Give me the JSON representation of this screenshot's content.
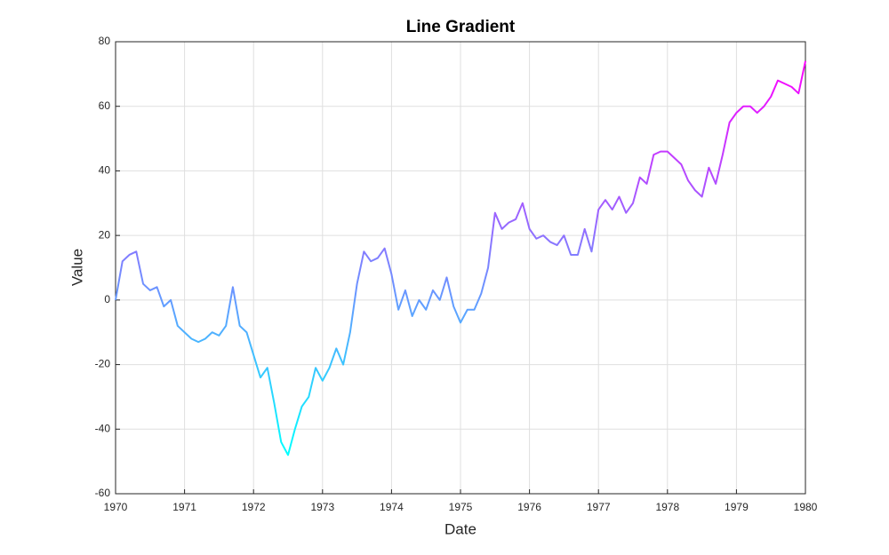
{
  "chart_data": {
    "type": "line",
    "title": "Line Gradient",
    "x_label": "Date",
    "y_label": "Value",
    "x": [
      1970.0,
      1970.1,
      1970.2,
      1970.3,
      1970.4,
      1970.5,
      1970.6,
      1970.7,
      1970.8,
      1970.9,
      1971.0,
      1971.1,
      1971.2,
      1971.3,
      1971.4,
      1971.5,
      1971.6,
      1971.7,
      1971.8,
      1971.9,
      1972.0,
      1972.1,
      1972.2,
      1972.3,
      1972.4,
      1972.5,
      1972.6,
      1972.7,
      1972.8,
      1972.9,
      1973.0,
      1973.1,
      1973.2,
      1973.3,
      1973.4,
      1973.5,
      1973.6,
      1973.7,
      1973.8,
      1973.9,
      1974.0,
      1974.1,
      1974.2,
      1974.3,
      1974.4,
      1974.5,
      1974.6,
      1974.7,
      1974.8,
      1974.9,
      1975.0,
      1975.1,
      1975.2,
      1975.3,
      1975.4,
      1975.5,
      1975.6,
      1975.7,
      1975.8,
      1975.9,
      1976.0,
      1976.1,
      1976.2,
      1976.3,
      1976.4,
      1976.5,
      1976.6,
      1976.7,
      1976.8,
      1976.9,
      1977.0,
      1977.1,
      1977.2,
      1977.3,
      1977.4,
      1977.5,
      1977.6,
      1977.7,
      1977.8,
      1977.9,
      1978.0,
      1978.1,
      1978.2,
      1978.3,
      1978.4,
      1978.5,
      1978.6,
      1978.7,
      1978.8,
      1978.9,
      1979.0,
      1979.1,
      1979.2,
      1979.3,
      1979.4,
      1979.5,
      1979.6,
      1979.7,
      1979.8,
      1979.9,
      1980.0
    ],
    "values": [
      0,
      12,
      14,
      15,
      5,
      3,
      4,
      -2,
      0,
      -8,
      -10,
      -12,
      -13,
      -12,
      -10,
      -11,
      -8,
      4,
      -8,
      -10,
      -17,
      -24,
      -21,
      -32,
      -44,
      -48,
      -40,
      -33,
      -30,
      -21,
      -25,
      -21,
      -15,
      -20,
      -10,
      5,
      15,
      12,
      13,
      16,
      8,
      -3,
      3,
      -5,
      0,
      -3,
      3,
      0,
      7,
      -2,
      -7,
      -3,
      -3,
      2,
      10,
      27,
      22,
      24,
      25,
      30,
      22,
      19,
      20,
      18,
      17,
      20,
      14,
      14,
      22,
      15,
      28,
      31,
      28,
      32,
      27,
      30,
      38,
      36,
      45,
      46,
      46,
      44,
      42,
      37,
      34,
      32,
      41,
      36,
      45,
      55,
      58,
      60,
      60,
      58,
      60,
      63,
      68,
      67,
      66,
      64,
      74
    ],
    "colormap": [
      "#00ffff",
      "#ff00ff"
    ],
    "xlim": [
      1970,
      1980
    ],
    "xticks": [
      1970,
      1971,
      1972,
      1973,
      1974,
      1975,
      1976,
      1977,
      1978,
      1979,
      1980
    ],
    "ylim": [
      -60,
      80
    ],
    "yticks": [
      -60,
      -40,
      -20,
      0,
      20,
      40,
      60,
      80
    ],
    "grid": true
  }
}
